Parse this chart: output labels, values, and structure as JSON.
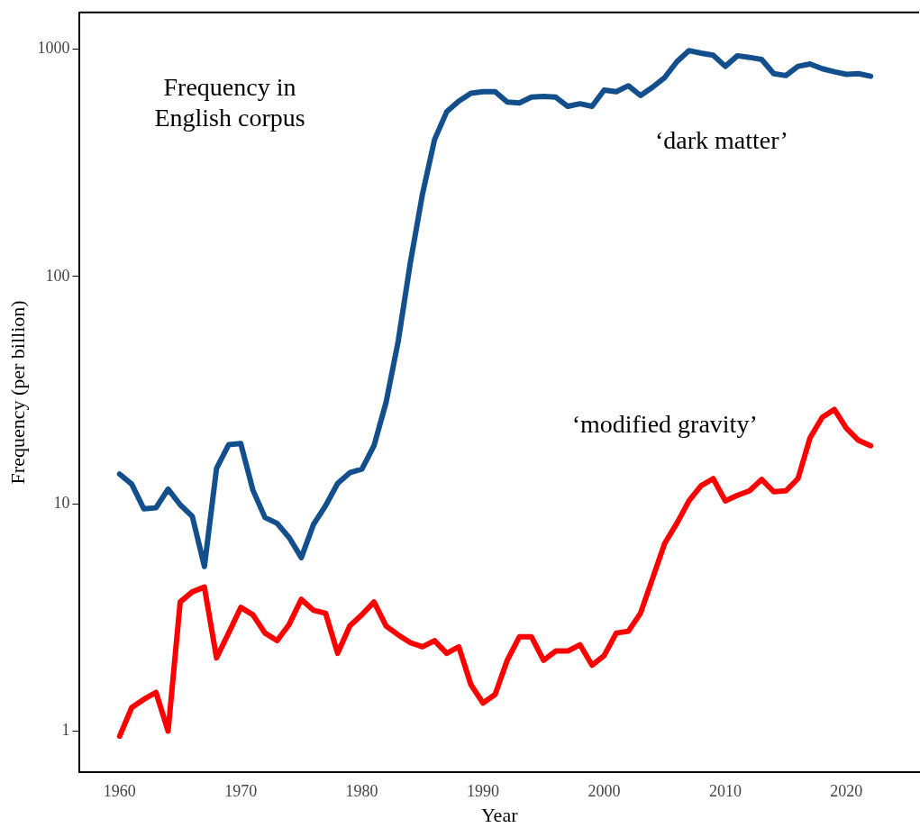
{
  "chart_data": {
    "type": "line",
    "xlabel": "Year",
    "ylabel": "Frequency (per billion)",
    "annotations": [
      "Frequency in English corpus"
    ],
    "x": [
      1960,
      1961,
      1962,
      1963,
      1964,
      1965,
      1966,
      1967,
      1968,
      1969,
      1970,
      1971,
      1972,
      1973,
      1974,
      1975,
      1976,
      1977,
      1978,
      1979,
      1980,
      1981,
      1982,
      1983,
      1984,
      1985,
      1986,
      1987,
      1988,
      1989,
      1990,
      1991,
      1992,
      1993,
      1994,
      1995,
      1996,
      1997,
      1998,
      1999,
      2000,
      2001,
      2002,
      2003,
      2004,
      2005,
      2006,
      2007,
      2008,
      2009,
      2010,
      2011,
      2012,
      2013,
      2014,
      2015,
      2016,
      2017,
      2018,
      2019,
      2020,
      2021,
      2022
    ],
    "series": [
      {
        "name": "‘dark matter’",
        "color": "#134f8c",
        "values": [
          13.5,
          12.2,
          9.5,
          9.6,
          11.6,
          9.9,
          8.8,
          5.3,
          14.3,
          18.2,
          18.4,
          11.5,
          8.7,
          8.2,
          7.1,
          5.8,
          8.1,
          9.8,
          12.3,
          13.7,
          14.2,
          18,
          28,
          52,
          115,
          230,
          400,
          530,
          590,
          640,
          650,
          650,
          585,
          580,
          615,
          620,
          615,
          560,
          575,
          560,
          660,
          650,
          690,
          625,
          680,
          750,
          880,
          985,
          960,
          940,
          840,
          935,
          920,
          900,
          780,
          765,
          840,
          860,
          820,
          795,
          775,
          780,
          760
        ]
      },
      {
        "name": "‘modified gravity’",
        "color": "#ff0000",
        "values": [
          0.95,
          1.27,
          1.38,
          1.48,
          1.0,
          3.7,
          4.1,
          4.3,
          2.1,
          2.7,
          3.5,
          3.25,
          2.7,
          2.5,
          2.95,
          3.8,
          3.4,
          3.3,
          2.2,
          2.9,
          3.25,
          3.7,
          2.9,
          2.65,
          2.45,
          2.35,
          2.5,
          2.2,
          2.35,
          1.6,
          1.33,
          1.45,
          2.05,
          2.6,
          2.6,
          2.05,
          2.25,
          2.25,
          2.4,
          1.95,
          2.15,
          2.7,
          2.75,
          3.3,
          4.7,
          6.7,
          8.2,
          10.3,
          12,
          12.9,
          10.3,
          10.9,
          11.4,
          12.8,
          11.3,
          11.4,
          12.9,
          19.5,
          24,
          26,
          21.5,
          19,
          18
        ]
      }
    ],
    "log": "y",
    "xlim": [
      1956.7,
      2026
    ],
    "ylim": [
      0.66,
      1450
    ],
    "xticks": [
      1960,
      1970,
      1980,
      1990,
      2000,
      2010,
      2020
    ],
    "yticks": [
      1,
      10,
      100,
      1000
    ],
    "grid": false,
    "legend": false,
    "marker": "none",
    "line_style": "solid"
  }
}
